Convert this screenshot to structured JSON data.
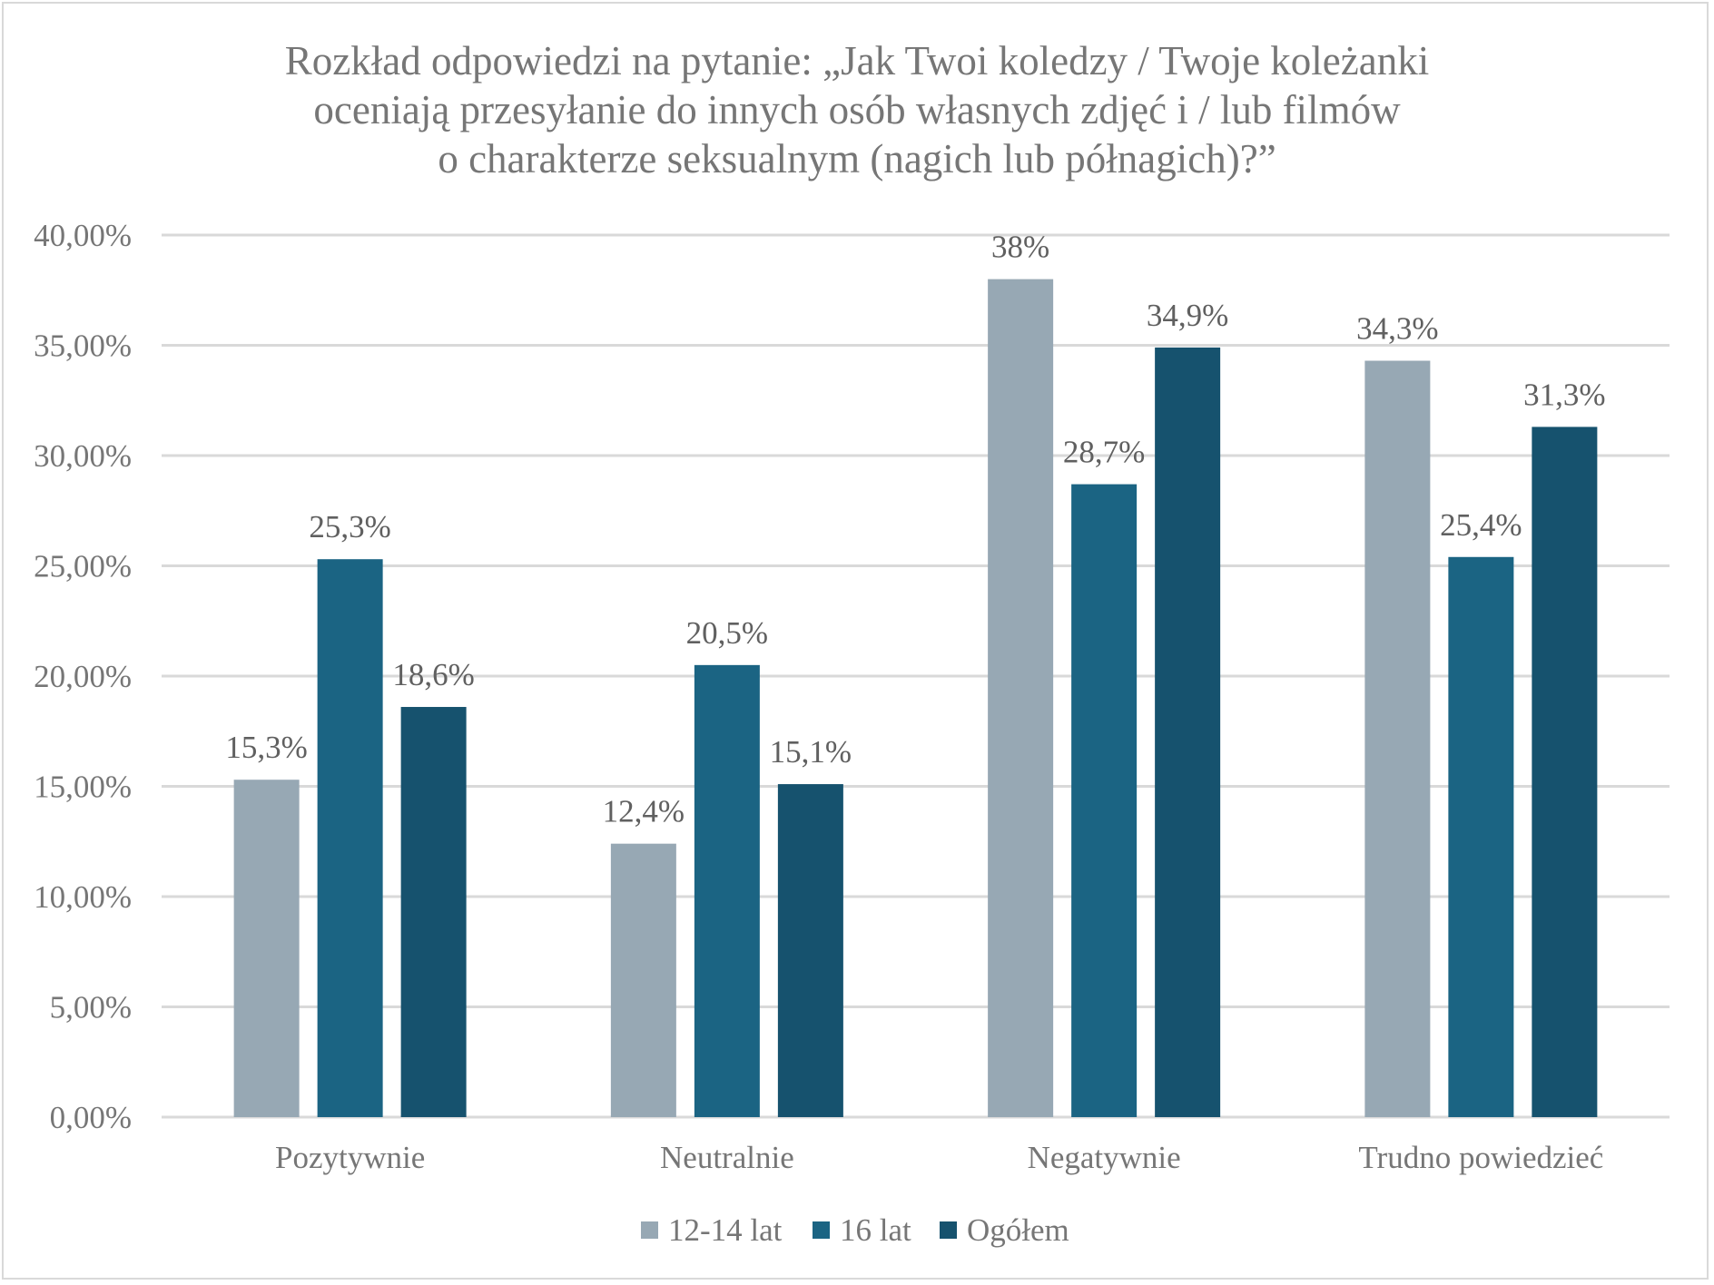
{
  "chart_data": {
    "type": "bar",
    "title": "Rozkład odpowiedzi na pytanie: „Jak Twoi koledzy / Twoje koleżanki oceniają przesyłanie do innych osób własnych zdjęć i / lub filmów o charakterze seksualnym (nagich lub półnagich)?”",
    "title_lines": [
      "Rozkład odpowiedzi na pytanie: „Jak Twoi koledzy / Twoje koleżanki",
      "oceniają przesyłanie do innych osób własnych zdjęć i / lub filmów",
      "o charakterze seksualnym (nagich lub półnagich)?”"
    ],
    "xlabel": "",
    "ylabel": "",
    "categories": [
      "Pozytywnie",
      "Neutralnie",
      "Negatywnie",
      "Trudno powiedzieć"
    ],
    "series": [
      {
        "name": "12-14 lat",
        "color": "#97a8b4",
        "values": [
          15.3,
          12.4,
          38.0,
          34.3
        ],
        "labels": [
          "15,3%",
          "12,4%",
          "38%",
          "34,3%"
        ]
      },
      {
        "name": "16 lat",
        "color": "#1b6483",
        "values": [
          25.3,
          20.5,
          28.7,
          25.4
        ],
        "labels": [
          "25,3%",
          "20,5%",
          "28,7%",
          "25,4%"
        ]
      },
      {
        "name": "Ogółem",
        "color": "#16526e",
        "values": [
          18.6,
          15.1,
          34.9,
          31.3
        ],
        "labels": [
          "18,6%",
          "15,1%",
          "34,9%",
          "31,3%"
        ]
      }
    ],
    "ylim": [
      0,
      40
    ],
    "yticks": [
      0,
      5,
      10,
      15,
      20,
      25,
      30,
      35,
      40
    ],
    "ytick_labels": [
      "0,00%",
      "5,00%",
      "10,00%",
      "15,00%",
      "20,00%",
      "25,00%",
      "30,00%",
      "35,00%",
      "40,00%"
    ],
    "grid": true,
    "legend_position": "bottom"
  }
}
